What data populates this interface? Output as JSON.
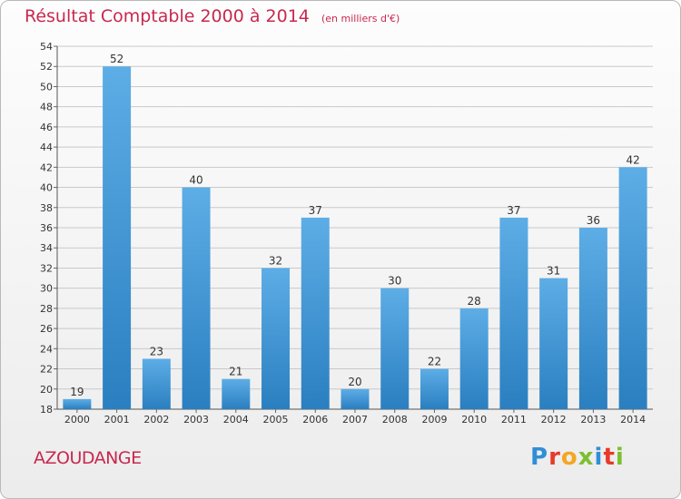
{
  "header": {
    "title": "Résultat Comptable 2000 à 2014",
    "subtitle": "(en milliers d'€)"
  },
  "footer": {
    "commune": "AZOUDANGE",
    "logo_text": "Proxiti",
    "logo_colors": [
      "#2f8fd6",
      "#e83a2a",
      "#f5a623",
      "#7cbf31",
      "#2f8fd6",
      "#e83a2a",
      "#7cbf31"
    ]
  },
  "colors": {
    "title": "#c8284e",
    "bar_light": "#5dade6",
    "bar_dark": "#2a7fc0",
    "grid": "#c9c9c9"
  },
  "chart_data": {
    "type": "bar",
    "categories": [
      "2000",
      "2001",
      "2002",
      "2003",
      "2004",
      "2005",
      "2006",
      "2007",
      "2008",
      "2009",
      "2010",
      "2011",
      "2012",
      "2013",
      "2014"
    ],
    "values": [
      19,
      52,
      23,
      40,
      21,
      32,
      37,
      20,
      30,
      22,
      28,
      37,
      31,
      36,
      42
    ],
    "ylim": [
      18,
      54
    ],
    "yticks": [
      18,
      20,
      22,
      24,
      26,
      28,
      30,
      32,
      34,
      36,
      38,
      40,
      42,
      44,
      46,
      48,
      50,
      52,
      54
    ],
    "grid": true,
    "legend": "none"
  }
}
